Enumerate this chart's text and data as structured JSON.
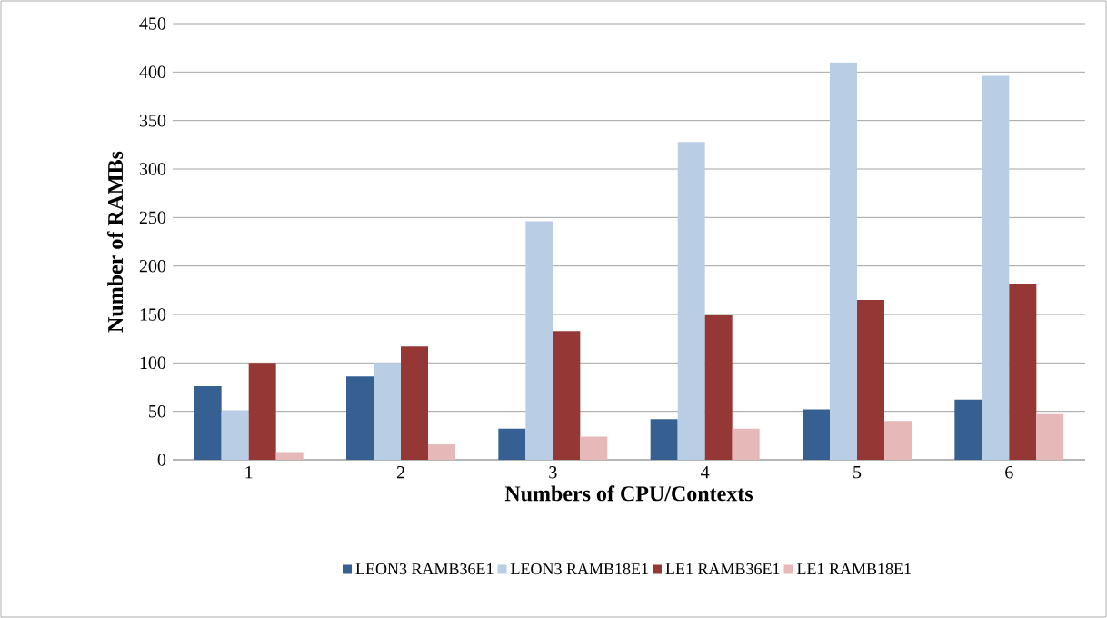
{
  "chart_data": {
    "type": "bar",
    "xlabel": "Numbers of CPU/Contexts",
    "ylabel": "Number of RAMBs",
    "categories": [
      "1",
      "2",
      "3",
      "4",
      "5",
      "6"
    ],
    "series": [
      {
        "name": "LEON3 RAMB36E1",
        "color": "#376092",
        "values": [
          76,
          86,
          32,
          42,
          52,
          62
        ]
      },
      {
        "name": "LEON3 RAMB18E1",
        "color": "#b9cde5",
        "values": [
          51,
          100,
          246,
          328,
          410,
          396
        ]
      },
      {
        "name": "LE1 RAMB36E1",
        "color": "#953735",
        "values": [
          100,
          117,
          133,
          149,
          165,
          181
        ]
      },
      {
        "name": "LE1 RAMB18E1",
        "color": "#e6b9b8",
        "values": [
          8,
          16,
          24,
          32,
          40,
          48
        ]
      }
    ],
    "ylim": [
      0,
      450
    ],
    "yticks": [
      0,
      50,
      100,
      150,
      200,
      250,
      300,
      350,
      400,
      450
    ],
    "grid": "y",
    "legend": "bottom"
  }
}
